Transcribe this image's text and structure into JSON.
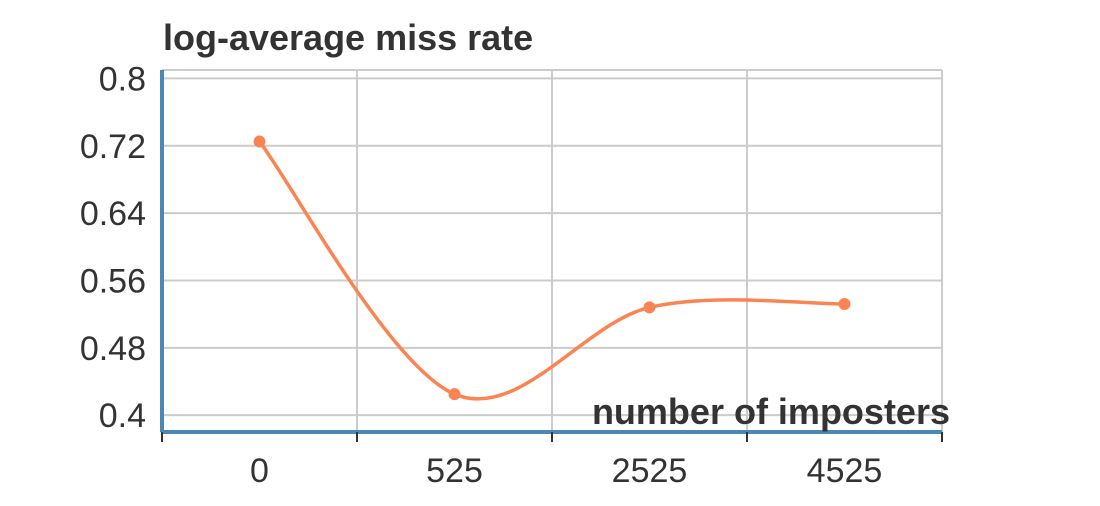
{
  "chart_data": {
    "type": "line",
    "title": "",
    "xlabel": "number of imposters",
    "ylabel": "log-average miss rate",
    "categories": [
      "0",
      "525",
      "2525",
      "4525"
    ],
    "y_ticks": [
      "0.8",
      "0.72",
      "0.64",
      "0.56",
      "0.48",
      "0.4"
    ],
    "ylim": [
      0.38,
      0.81
    ],
    "series": [
      {
        "values": [
          0.725,
          0.425,
          0.528,
          0.532
        ]
      }
    ],
    "smooth": true,
    "grid": true,
    "legend": "none",
    "colors": {
      "line": "#fa8452",
      "axis": "#4b88b6",
      "grid": "#cccccc",
      "text": "#333333"
    }
  }
}
